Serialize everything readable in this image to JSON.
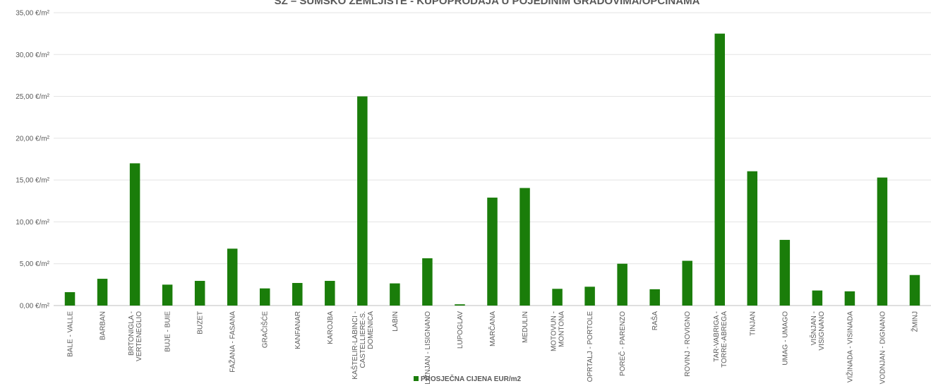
{
  "chart_data": {
    "type": "bar",
    "title": "SZ – ŠUMSKO ZEMLJIŠTE - KUPOPRODAJA U POJEDINIM GRADOVIMA/OPĆINAMA",
    "xlabel": "",
    "ylabel": "",
    "ylim": [
      0,
      35
    ],
    "y_tick_labels": [
      "0,00 €/m²",
      "5,00 €/m²",
      "10,00 €/m²",
      "15,00 €/m²",
      "20,00 €/m²",
      "25,00 €/m²",
      "30,00 €/m²",
      "35,00 €/m²"
    ],
    "grid": true,
    "legend_position": "bottom",
    "bar_color": "#1a7d0a",
    "categories": [
      [
        "BALE - VALLE"
      ],
      [
        "BARBAN"
      ],
      [
        "BRTONIGLA -",
        "VERTENEGLIO"
      ],
      [
        "BUJE - BUIE"
      ],
      [
        "BUZET"
      ],
      [
        "FAŽANA - FASANA"
      ],
      [
        "GRAČIŠĆE"
      ],
      [
        "KANFANAR"
      ],
      [
        "KAROJBA"
      ],
      [
        "KAŠTELIR-LABINCI -",
        "CASTELLIERE-S.",
        "DOMENICA"
      ],
      [
        "LABIN"
      ],
      [
        "LIŽNJAN - LISIGNANO"
      ],
      [
        "LUPOGLAV"
      ],
      [
        "MARČANA"
      ],
      [
        "MEDULIN"
      ],
      [
        "MOTOVUN -",
        "MONTONA"
      ],
      [
        "OPRTALJ - PORTOLE"
      ],
      [
        "POREČ - PARENZO"
      ],
      [
        "RAŠA"
      ],
      [
        "ROVINJ - ROVIGNO"
      ],
      [
        "TAR-VABRIGA -",
        "TORRE-ABREGA"
      ],
      [
        "TINJAN"
      ],
      [
        "UMAG - UMAGO"
      ],
      [
        "VIŠNJAN -",
        "VISIGNANO"
      ],
      [
        "VIŽINADA - VISINADA"
      ],
      [
        "VODNJAN - DIGNANO"
      ],
      [
        "ŽMINJ"
      ]
    ],
    "series": [
      {
        "name": "PROSJEČNA CIJENA EUR/m2",
        "values": [
          1.6,
          3.2,
          17.0,
          2.5,
          2.95,
          6.8,
          2.05,
          2.7,
          2.95,
          25.0,
          2.65,
          5.65,
          0.15,
          12.9,
          14.05,
          2.0,
          2.25,
          5.0,
          1.95,
          5.35,
          32.5,
          16.05,
          7.85,
          1.8,
          1.7,
          15.3,
          3.65
        ]
      }
    ]
  }
}
